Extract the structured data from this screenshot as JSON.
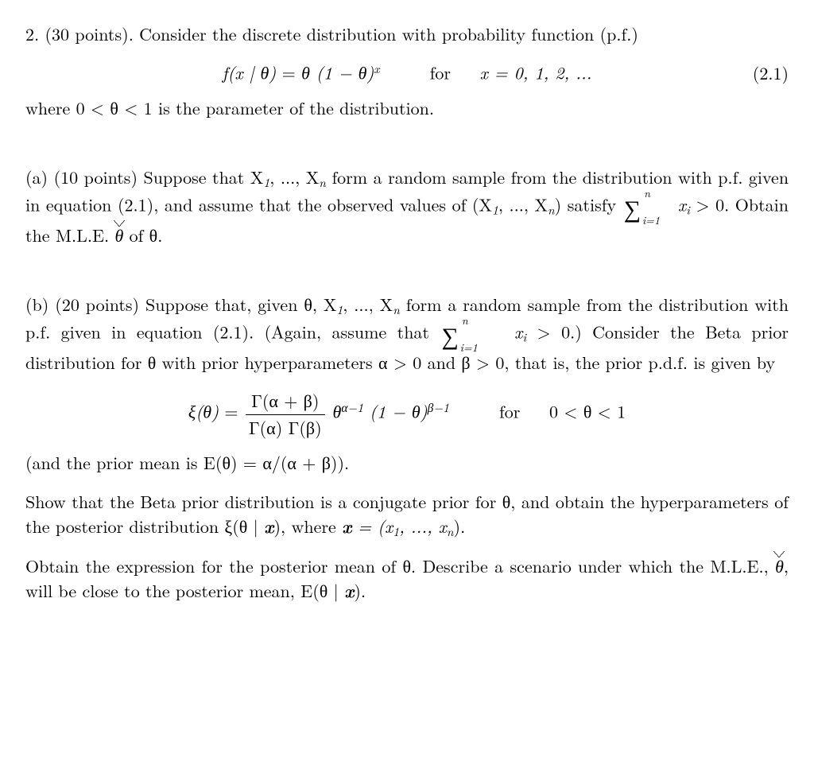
{
  "problem": {
    "number": "2.",
    "points": "(30 points).",
    "intro_a": "Consider the discrete distribution with probability function (p.f.)",
    "eq1_lhs": "f(x | θ)",
    "eq1_eq": " = ",
    "eq1_rhs": "θ (1 − θ)",
    "eq1_exp": "x",
    "eq1_for": "for",
    "eq1_dom": "x = 0, 1, 2, ...",
    "eq1_tag": "(2.1)",
    "where": "where 0 < θ < 1 is the parameter of the distribution."
  },
  "partA": {
    "label": "(a)",
    "points": "(10 points)",
    "text1": "Suppose that X",
    "text2": ", ..., X",
    "text3": " form a random sample from the distribution with p.f. given in equation (2.1), and assume that the observed values of (X",
    "text4": ", ..., X",
    "text5": ") satisfy ",
    "sum_top": "n",
    "sum_bot": "i=1",
    "xi": "x",
    "cond": " > 0. Obtain the M.L.E. ",
    "theta_hat": "θ",
    "of": " of θ."
  },
  "partB": {
    "label": "(b)",
    "points": "(20 points)",
    "text1": "Suppose that, given θ, X",
    "text2": ", ..., X",
    "text3": " form a random sample from the distribution with p.f. given in equation (2.1). (Again, assume that ",
    "text4": " > 0.) Consider the Beta prior distribution for θ with prior hyperparameters α > 0 and β > 0, that is, the prior p.d.f. is given by",
    "xi_lhs": "ξ(θ)",
    "eq": " = ",
    "gamma_top": "Γ(α + β)",
    "gamma_bot": "Γ(α) Γ(β)",
    "theta_term": " θ",
    "theta_exp": "α−1",
    "one_minus": " (1 − θ)",
    "beta_exp": "β−1",
    "for": "for",
    "dom": "0 < θ < 1",
    "prior_mean": "(and the prior mean is E(θ) = α/(α + β)).",
    "conj1": "Show that the Beta prior distribution is a conjugate prior for θ, and obtain the hyperparameters of the posterior distribution ξ(θ | ",
    "x_bold": "x",
    "conj2": "), where ",
    "x_def": " = (x",
    "x_def2": ", ..., x",
    "x_def3": ").",
    "post1": "Obtain the expression for the posterior mean of θ. Describe a scenario under which the M.L.E., ",
    "post2": ", will be close to the posterior mean, E(θ | ",
    "post3": ")."
  },
  "sub": {
    "one": "1",
    "n": "n",
    "i": "i"
  }
}
